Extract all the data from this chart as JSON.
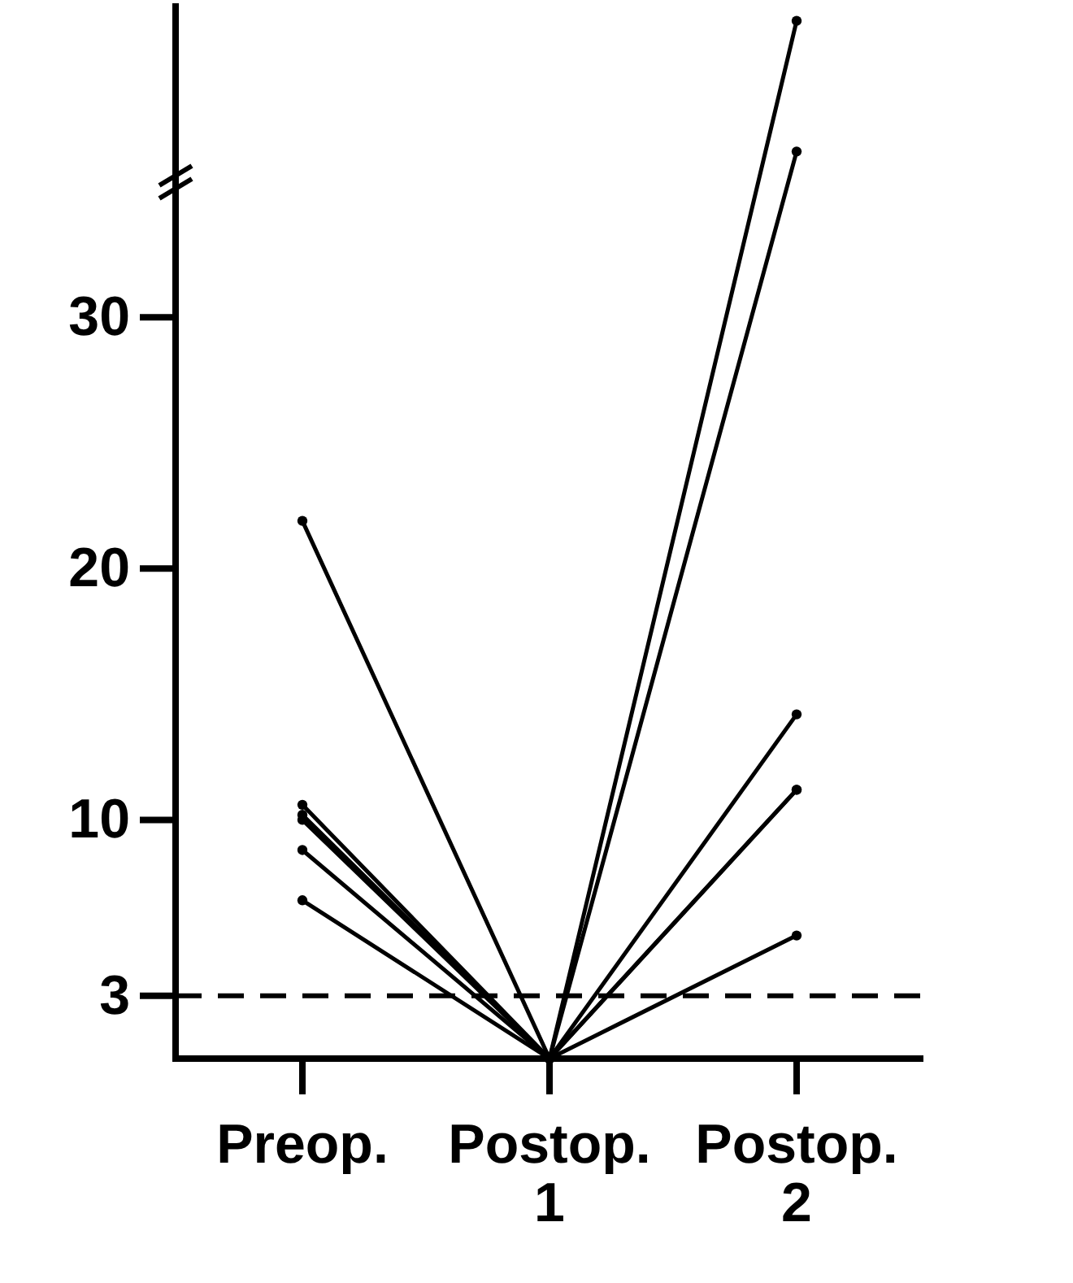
{
  "chart_data": {
    "type": "line",
    "categories": [
      "Preop.",
      "Postop.\n1",
      "Postop.\n2"
    ],
    "series": [
      {
        "color": "#000000",
        "values": [
          21.9,
          0.5,
          41.8
        ]
      },
      {
        "color": "#000000",
        "values": [
          10.6,
          0.5,
          36.6
        ]
      },
      {
        "color": "#000000",
        "values": [
          10.2,
          0.5,
          14.2
        ]
      },
      {
        "color": "#000000",
        "values": [
          10.0,
          0.5,
          11.2
        ]
      },
      {
        "color": "#000000",
        "values": [
          8.8,
          0.5,
          11.2
        ]
      },
      {
        "color": "#000000",
        "values": [
          6.8,
          0.5,
          5.4
        ]
      }
    ],
    "ylim": [
      0.5,
      42.5
    ],
    "yticks": [
      3,
      10,
      20,
      30
    ],
    "marker": "circle",
    "line_style": "solid",
    "ref_lines": [
      {
        "axis": "y",
        "value": 3,
        "line_style": "dashed",
        "color": "#000000"
      }
    ]
  }
}
